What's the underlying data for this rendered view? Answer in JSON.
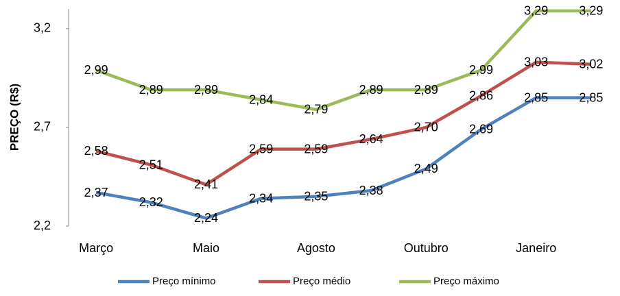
{
  "chart_data": {
    "type": "line",
    "y_label": "PREÇO (R$)",
    "categories": [
      "Março",
      null,
      "Maio",
      null,
      "Agosto",
      null,
      "Outubro",
      null,
      "Janeiro",
      null
    ],
    "series": [
      {
        "name": "Preço mínimo",
        "color": "#4f81bd",
        "values": [
          2.37,
          2.32,
          2.24,
          2.34,
          2.35,
          2.38,
          2.49,
          2.69,
          2.85,
          2.85
        ],
        "value_labels": [
          "2,37",
          "2,32",
          "2,24",
          "2,34",
          "2,35",
          "2,38",
          "2,49",
          "2,69",
          "2,85",
          "2,85"
        ]
      },
      {
        "name": "Preço médio",
        "color": "#c0504d",
        "values": [
          2.58,
          2.51,
          2.41,
          2.59,
          2.59,
          2.64,
          2.7,
          2.86,
          3.03,
          3.02
        ],
        "value_labels": [
          "2,58",
          "2,51",
          "2,41",
          "2,59",
          "2,59",
          "2,64",
          "2,70",
          "2,86",
          "3,03",
          "3,02"
        ]
      },
      {
        "name": "Preço máximo",
        "color": "#9bbb59",
        "values": [
          2.99,
          2.89,
          2.89,
          2.84,
          2.79,
          2.89,
          2.89,
          2.99,
          3.29,
          3.29
        ],
        "value_labels": [
          "2,99",
          "2,89",
          "2,89",
          "2,84",
          "2,79",
          "2,89",
          "2,89",
          "2,99",
          "3,29",
          "3,29"
        ]
      }
    ],
    "ylim": [
      2.2,
      3.3
    ],
    "yticks": [
      {
        "value": 2.2,
        "label": "2,2"
      },
      {
        "value": 2.7,
        "label": "2,7"
      },
      {
        "value": 3.2,
        "label": "3,2"
      }
    ],
    "grid": false,
    "legend": "bottom"
  }
}
